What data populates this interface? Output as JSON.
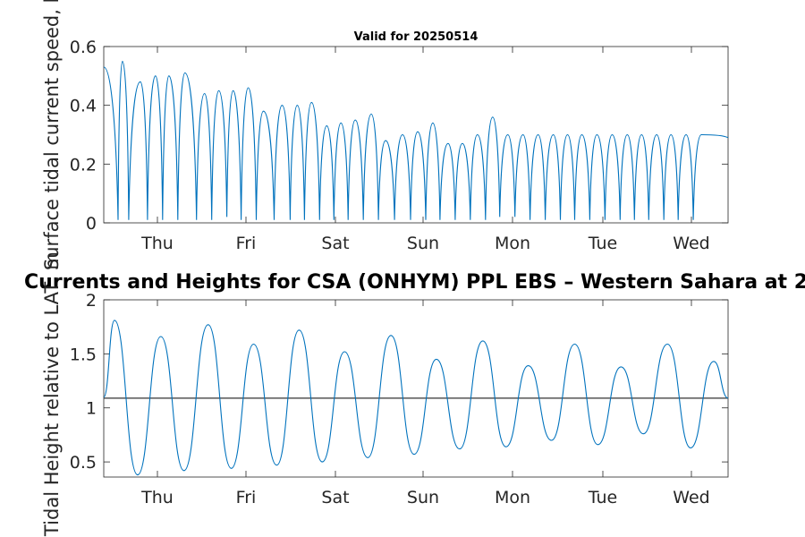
{
  "chart_data": [
    {
      "type": "line",
      "title": "Valid for 20250514",
      "ylabel": "Surface tidal current speed, kn",
      "xticks": [
        "Thu",
        "Fri",
        "Sat",
        "Sun",
        "Mon",
        "Tue",
        "Wed"
      ],
      "xlim": [
        0,
        7
      ],
      "ylim": [
        0,
        0.6
      ],
      "yticks": [
        "0",
        "0.2",
        "0.4",
        "0.6"
      ],
      "yticks_values": [
        0,
        0.2,
        0.4,
        0.6
      ],
      "grid": false,
      "series_color": "#0072BD",
      "x": [
        0.0,
        0.16,
        0.21,
        0.28,
        0.41,
        0.49,
        0.58,
        0.66,
        0.73,
        0.83,
        0.91,
        1.04,
        1.13,
        1.21,
        1.29,
        1.38,
        1.45,
        1.54,
        1.62,
        1.71,
        1.79,
        1.91,
        2.0,
        2.09,
        2.17,
        2.25,
        2.33,
        2.42,
        2.5,
        2.58,
        2.66,
        2.74,
        2.82,
        2.91,
        3.0,
        3.08,
        3.16,
        3.26,
        3.35,
        3.44,
        3.52,
        3.61,
        3.69,
        3.77,
        3.86,
        3.94,
        4.02,
        4.11,
        4.19,
        4.28,
        4.36,
        4.44,
        4.53,
        4.61,
        4.7,
        4.78,
        4.87,
        4.95,
        5.04,
        5.12,
        5.2,
        5.28,
        5.36,
        5.45,
        5.53,
        5.62,
        5.7,
        5.79,
        5.87,
        5.95,
        6.03,
        6.11,
        6.2,
        6.28,
        6.36,
        6.44,
        6.53,
        6.61,
        6.7,
        7.0
      ],
      "values": [
        0.53,
        0.01,
        0.55,
        0.01,
        0.48,
        0.01,
        0.5,
        0.01,
        0.5,
        0.01,
        0.51,
        0.01,
        0.44,
        0.01,
        0.45,
        0.02,
        0.45,
        0.01,
        0.46,
        0.01,
        0.38,
        0.01,
        0.4,
        0.01,
        0.4,
        0.01,
        0.41,
        0.01,
        0.33,
        0.01,
        0.34,
        0.01,
        0.35,
        0.01,
        0.37,
        0.01,
        0.28,
        0.01,
        0.3,
        0.01,
        0.31,
        0.01,
        0.34,
        0.01,
        0.27,
        0.01,
        0.27,
        0.01,
        0.3,
        0.01,
        0.36,
        0.02,
        0.3,
        0.02,
        0.3,
        0.01,
        0.3,
        0.01,
        0.3,
        0.01,
        0.3,
        0.01,
        0.3,
        0.01,
        0.3,
        0.01,
        0.3,
        0.01,
        0.3,
        0.01,
        0.3,
        0.01,
        0.3,
        0.01,
        0.3,
        0.01,
        0.3,
        0.01,
        0.3,
        0.29
      ]
    },
    {
      "type": "line",
      "title": "Currents and Heights for CSA (ONHYM) PPL EBS  – Western Sahara at 2",
      "ylabel": "Tidal Height relative to LAT, m",
      "xticks": [
        "Thu",
        "Fri",
        "Sat",
        "Sun",
        "Mon",
        "Tue",
        "Wed"
      ],
      "xlim": [
        0,
        7
      ],
      "ylim": [
        0.36,
        2
      ],
      "yticks": [
        "0.5",
        "1",
        "1.5",
        "2"
      ],
      "yticks_values": [
        0.5,
        1,
        1.5,
        2
      ],
      "grid": false,
      "series_color": "#0072BD",
      "reference_line": 1.09,
      "reference_color": "#333333",
      "x": [
        0.0,
        0.12,
        0.38,
        0.64,
        0.9,
        1.17,
        1.43,
        1.68,
        1.94,
        2.19,
        2.45,
        2.7,
        2.96,
        3.22,
        3.48,
        3.73,
        3.99,
        4.25,
        4.51,
        4.76,
        5.02,
        5.28,
        5.54,
        5.8,
        6.05,
        6.32,
        6.58,
        6.84,
        7.0
      ],
      "values": [
        1.1,
        1.81,
        0.38,
        1.66,
        0.42,
        1.77,
        0.44,
        1.59,
        0.47,
        1.72,
        0.5,
        1.52,
        0.54,
        1.67,
        0.57,
        1.45,
        0.62,
        1.62,
        0.64,
        1.39,
        0.7,
        1.59,
        0.66,
        1.38,
        0.76,
        1.59,
        0.63,
        1.43,
        1.09
      ]
    }
  ]
}
